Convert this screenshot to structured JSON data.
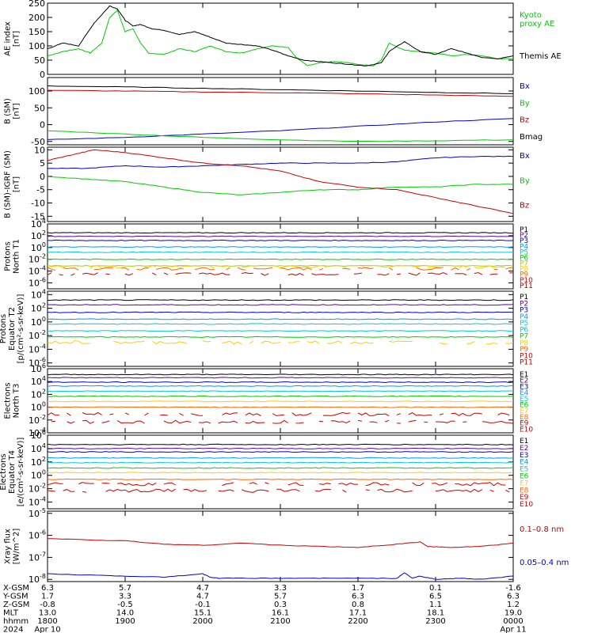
{
  "chart_data": [
    {
      "type": "line",
      "ylabel": "AE index [nT]",
      "ylim": [
        0,
        250
      ],
      "yticks": [
        "250",
        "200",
        "150",
        "100",
        "50",
        "0"
      ],
      "series": [
        {
          "name": "Kyoto proxy AE",
          "color": "#00cc00",
          "x": [
            0,
            0.2,
            0.4,
            0.55,
            0.7,
            0.8,
            0.9,
            1.0,
            1.1,
            1.2,
            1.3,
            1.5,
            1.7,
            1.9,
            2.1,
            2.3,
            2.5,
            2.7,
            2.9,
            3.1,
            3.2,
            3.35,
            3.5,
            3.7,
            3.9,
            4.0,
            4.2,
            4.3,
            4.4,
            4.6,
            4.8,
            5.0,
            5.2,
            5.4,
            5.6,
            5.8,
            6.0
          ],
          "y": [
            65,
            80,
            90,
            75,
            110,
            200,
            225,
            150,
            160,
            110,
            75,
            70,
            90,
            80,
            100,
            80,
            75,
            90,
            100,
            95,
            60,
            30,
            40,
            45,
            40,
            35,
            30,
            50,
            110,
            85,
            80,
            75,
            65,
            70,
            65,
            55,
            55
          ]
        },
        {
          "name": "Themis AE",
          "color": "#000000",
          "x": [
            0,
            0.2,
            0.4,
            0.6,
            0.8,
            0.9,
            1.0,
            1.1,
            1.2,
            1.35,
            1.5,
            1.7,
            1.9,
            2.1,
            2.3,
            2.5,
            2.7,
            2.9,
            3.1,
            3.3,
            3.5,
            3.7,
            3.9,
            4.1,
            4.3,
            4.4,
            4.6,
            4.8,
            5.0,
            5.2,
            5.4,
            5.6,
            5.8,
            6.0
          ],
          "y": [
            90,
            110,
            100,
            180,
            240,
            230,
            190,
            170,
            175,
            160,
            155,
            140,
            150,
            130,
            110,
            105,
            100,
            85,
            65,
            50,
            45,
            40,
            35,
            30,
            40,
            80,
            115,
            80,
            70,
            90,
            75,
            60,
            55,
            65
          ]
        }
      ]
    },
    {
      "type": "line",
      "ylabel": "B (SM) [nT]",
      "ylim": [
        -60,
        140
      ],
      "yticks": [
        "100",
        "50",
        "0",
        "-50"
      ],
      "series": [
        {
          "name": "Bx",
          "color": "#0000cc",
          "x": [
            0,
            1,
            2,
            3,
            4,
            5,
            6
          ],
          "y": [
            -45,
            -38,
            -28,
            -18,
            -5,
            8,
            18
          ]
        },
        {
          "name": "By",
          "color": "#00cc00",
          "x": [
            0,
            1,
            2,
            3,
            4,
            5,
            6
          ],
          "y": [
            -18,
            -28,
            -38,
            -45,
            -50,
            -48,
            -45
          ]
        },
        {
          "name": "Bz",
          "color": "#cc0000",
          "x": [
            0,
            1,
            2,
            3,
            4,
            5,
            6
          ],
          "y": [
            102,
            100,
            97,
            95,
            92,
            88,
            84
          ]
        },
        {
          "name": "Bmag",
          "color": "#000000",
          "x": [
            0,
            1,
            2,
            3,
            4,
            5,
            6
          ],
          "y": [
            115,
            112,
            108,
            104,
            100,
            96,
            92
          ]
        }
      ]
    },
    {
      "type": "line",
      "ylabel": "B (SM)-IGRF (SM) [nT]",
      "ylim": [
        -17,
        11
      ],
      "yticks": [
        "10",
        "5",
        "0",
        "-5",
        "-10",
        "-15"
      ],
      "series": [
        {
          "name": "Bx",
          "color": "#0000cc",
          "x": [
            0,
            0.5,
            1,
            1.5,
            2,
            2.5,
            3,
            3.5,
            4,
            4.5,
            5,
            5.5,
            6
          ],
          "y": [
            3,
            3,
            4,
            3.5,
            4,
            4.5,
            5,
            5,
            5,
            5.5,
            7,
            7.5,
            7.5
          ]
        },
        {
          "name": "By",
          "color": "#00cc00",
          "x": [
            0,
            0.5,
            1,
            1.5,
            2,
            2.5,
            3,
            3.5,
            4,
            4.5,
            5,
            5.5,
            6
          ],
          "y": [
            0,
            -1,
            -2,
            -4,
            -6,
            -7,
            -6,
            -5,
            -5,
            -4,
            -4,
            -3,
            -3
          ]
        },
        {
          "name": "Bz",
          "color": "#cc0000",
          "x": [
            0,
            0.3,
            0.6,
            1,
            1.5,
            2,
            2.5,
            3,
            3.5,
            4,
            4.5,
            5,
            5.5,
            6
          ],
          "y": [
            6,
            8,
            10,
            9,
            7,
            5,
            4,
            2,
            -2,
            -4,
            -5,
            -8,
            -11,
            -14
          ]
        }
      ]
    },
    {
      "type": "line",
      "ylabel": "Protons North T1",
      "ylog": true,
      "ylim": [
        -7,
        4
      ],
      "yticks": [
        "10^4",
        "10^2",
        "10^0",
        "10^-2",
        "10^-4",
        "10^-6"
      ],
      "series": [
        {
          "name": "P1",
          "color": "#000000",
          "level": 2.5
        },
        {
          "name": "P2",
          "color": "#660099",
          "level": 1.9
        },
        {
          "name": "P3",
          "color": "#0000cc",
          "level": 1.2
        },
        {
          "name": "P4",
          "color": "#0099ff",
          "level": 0.1
        },
        {
          "name": "P5",
          "color": "#00cccc",
          "level": -0.8
        },
        {
          "name": "P6",
          "color": "#00cc00",
          "level": -2.0
        },
        {
          "name": "P7",
          "color": "#aacc00",
          "level": -3.1
        },
        {
          "name": "P8",
          "color": "#ffcc00",
          "level": -3.3
        },
        {
          "name": "P9",
          "color": "#ff6600",
          "level": -3.6
        },
        {
          "name": "P10",
          "color": "#cc0000",
          "level": -4.5
        },
        {
          "name": "P11",
          "color": "#990000",
          "level": null
        }
      ]
    },
    {
      "type": "line",
      "ylabel": "Protons Equator T2 [p/(cm²-s-sr-keV)]",
      "ylog": true,
      "ylim": [
        -6.5,
        4.5
      ],
      "yticks": [
        "10^4",
        "10^2",
        "10^0",
        "10^-2",
        "10^-4",
        "10^-6"
      ],
      "series": [
        {
          "name": "P1",
          "color": "#000000",
          "level": 3.2
        },
        {
          "name": "P2",
          "color": "#660099",
          "level": 2.5
        },
        {
          "name": "P3",
          "color": "#0000cc",
          "level": 1.4
        },
        {
          "name": "P4",
          "color": "#0099ff",
          "level": 0.4
        },
        {
          "name": "P5",
          "color": "#00cccc",
          "level": -0.3
        },
        {
          "name": "P6",
          "color": "#00cccc",
          "level": -1.3
        },
        {
          "name": "P7",
          "color": "#00cc00",
          "level": -2.2
        },
        {
          "name": "P8",
          "color": "#ffcc00",
          "level": -3.0
        },
        {
          "name": "P9",
          "color": "#ff6600",
          "level": null
        },
        {
          "name": "P10",
          "color": "#cc0000",
          "level": null
        },
        {
          "name": "P11",
          "color": "#990000",
          "level": null
        }
      ]
    },
    {
      "type": "line",
      "ylabel": "Electrons North T3",
      "ylog": true,
      "ylim": [
        -4,
        6
      ],
      "yticks": [
        "10^6",
        "10^4",
        "10^2",
        "10^0",
        "10^-2",
        "10^-4"
      ],
      "series": [
        {
          "name": "E1",
          "color": "#000000",
          "level": 5.1
        },
        {
          "name": "E2",
          "color": "#660099",
          "level": 4.6
        },
        {
          "name": "E3",
          "color": "#0000cc",
          "level": 3.9
        },
        {
          "name": "E4",
          "color": "#0099ff",
          "level": 3.3
        },
        {
          "name": "E5",
          "color": "#00cccc",
          "level": 2.5
        },
        {
          "name": "E6",
          "color": "#00cc00",
          "level": 1.7
        },
        {
          "name": "E7",
          "color": "#ffcc00",
          "level": 0.9
        },
        {
          "name": "E8",
          "color": "#ff6600",
          "level": 0.0
        },
        {
          "name": "E9",
          "color": "#cc0000",
          "level": -1.1
        },
        {
          "name": "E10",
          "color": "#cc0000",
          "level": -2.3
        }
      ]
    },
    {
      "type": "line",
      "ylabel": "Electrons Equator T4 [e/(cm²-s-sr-keV)]",
      "ylog": true,
      "ylim": [
        -5,
        6
      ],
      "yticks": [
        "10^6",
        "10^4",
        "10^2",
        "10^0",
        "10^-2",
        "10^-4"
      ],
      "series": [
        {
          "name": "E1",
          "color": "#000000",
          "level": 4.6
        },
        {
          "name": "E2",
          "color": "#660099",
          "level": 4.0
        },
        {
          "name": "E3",
          "color": "#0000cc",
          "level": 3.5
        },
        {
          "name": "E4",
          "color": "#0099ff",
          "level": 2.6
        },
        {
          "name": "E5",
          "color": "#00cccc",
          "level": 1.9
        },
        {
          "name": "E6",
          "color": "#00cc00",
          "level": 1.1
        },
        {
          "name": "E7",
          "color": "#ffcc00",
          "level": 0.4
        },
        {
          "name": "E8",
          "color": "#ff6600",
          "level": -0.6
        },
        {
          "name": "E9",
          "color": "#cc0000",
          "level": -1.3
        },
        {
          "name": "E10",
          "color": "#cc0000",
          "level": -2.3
        }
      ]
    },
    {
      "type": "line",
      "ylabel": "Xray flux [W/m^2]",
      "ylog": true,
      "ylim": [
        -8.1,
        -4.9
      ],
      "yticks": [
        "10^-5",
        "10^-6",
        "10^-7",
        "10^-8"
      ],
      "series": [
        {
          "name": "0.1–0.8 nm",
          "color": "#cc0000",
          "x": [
            0,
            0.5,
            1,
            1.5,
            2,
            2.5,
            3,
            3.5,
            4,
            4.5,
            4.8,
            4.9,
            5.2,
            5.6,
            6
          ],
          "y": [
            -6.15,
            -6.2,
            -6.25,
            -6.4,
            -6.45,
            -6.35,
            -6.45,
            -6.5,
            -6.55,
            -6.4,
            -6.3,
            -6.5,
            -6.55,
            -6.5,
            -6.35
          ]
        },
        {
          "name": "0.05–0.4 nm",
          "color": "#0000cc",
          "x": [
            0,
            0.5,
            1,
            1.5,
            2,
            2.1,
            2.2,
            2.5,
            3,
            3.5,
            4,
            4.5,
            4.6,
            4.7,
            4.8,
            5,
            5.3,
            5.6,
            6
          ],
          "y": [
            -7.75,
            -7.8,
            -7.85,
            -7.9,
            -7.75,
            -7.9,
            -7.95,
            -7.95,
            -7.95,
            -7.95,
            -7.95,
            -7.95,
            -7.7,
            -7.95,
            -7.85,
            -8.0,
            -7.95,
            -8.0,
            -7.85
          ]
        }
      ]
    }
  ],
  "ephemeris": {
    "labels": [
      "X-GSM",
      "Y-GSM",
      "Z-GSM",
      "MLT",
      "hhmm",
      "2024"
    ],
    "columns": [
      [
        "6.3",
        "1.7",
        "-0.8",
        "13.0",
        "1800",
        "Apr 10"
      ],
      [
        "5.7",
        "3.3",
        "-0.5",
        "14.0",
        "1900",
        ""
      ],
      [
        "4.7",
        "4.7",
        "-0.1",
        "15.1",
        "2000",
        ""
      ],
      [
        "3.3",
        "5.7",
        "0.3",
        "16.1",
        "2100",
        ""
      ],
      [
        "1.7",
        "6.3",
        "0.8",
        "17.1",
        "2200",
        ""
      ],
      [
        "0.1",
        "6.5",
        "1.1",
        "18.1",
        "2300",
        ""
      ],
      [
        "-1.6",
        "6.3",
        "1.2",
        "19.0",
        "0000",
        "Apr 11"
      ]
    ]
  },
  "colors": {
    "frame": "#000000",
    "text": "#000000"
  }
}
